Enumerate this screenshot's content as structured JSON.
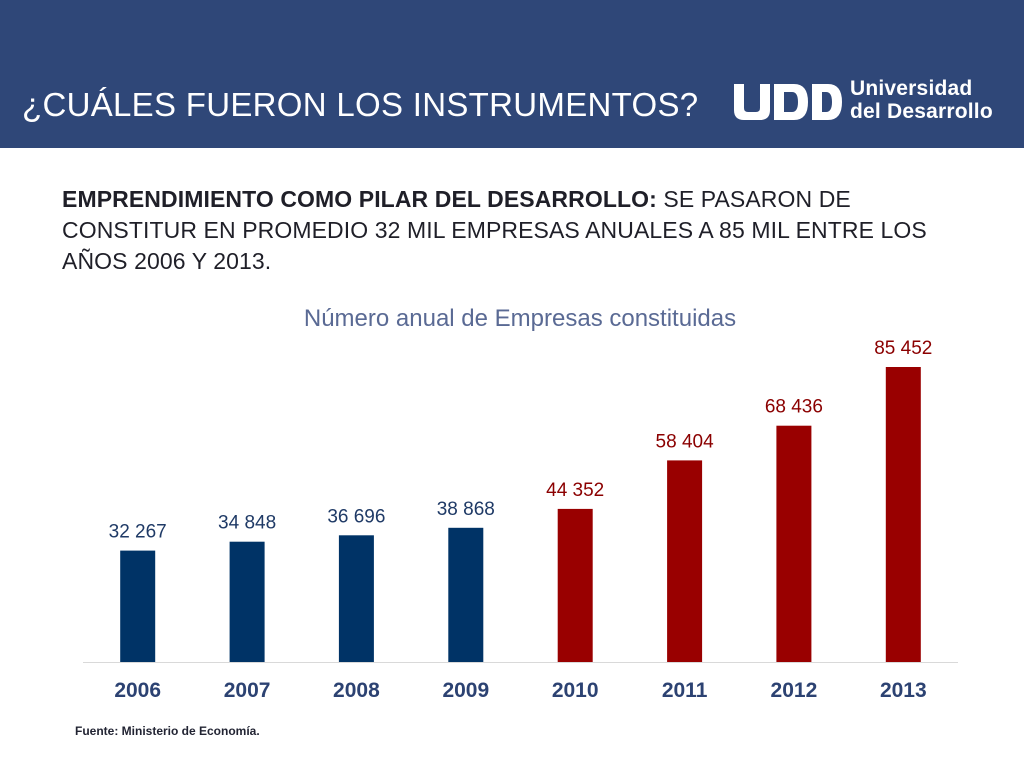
{
  "header": {
    "title": "¿CUÁLES FUERON LOS INSTRUMENTOS?",
    "logo": {
      "line1": "Universidad",
      "line2": "del Desarrollo",
      "mark": "UDD"
    },
    "background": "#2f4778"
  },
  "subtitle": {
    "bold": "EMPRENDIMIENTO COMO PILAR DEL DESARROLLO:",
    "text": " SE PASARON DE CONSTITUR EN PROMEDIO 32 MIL EMPRESAS ANUALES A 85 MIL ENTRE LOS AÑOS 2006 Y 2013."
  },
  "chart_data": {
    "type": "bar",
    "title": "Número anual de Empresas constituidas",
    "xlabel": "",
    "ylabel": "",
    "categories": [
      "2006",
      "2007",
      "2008",
      "2009",
      "2010",
      "2011",
      "2012",
      "2013"
    ],
    "values": [
      32267,
      34848,
      36696,
      38868,
      44352,
      58404,
      68436,
      85452
    ],
    "value_labels": [
      "32 267",
      "34 848",
      "36 696",
      "38 868",
      "44 352",
      "58 404",
      "68 436",
      "85 452"
    ],
    "bar_colors": [
      "#003366",
      "#003366",
      "#003366",
      "#003366",
      "#990000",
      "#990000",
      "#990000",
      "#990000"
    ],
    "ylim": [
      0,
      85452
    ],
    "grid": false,
    "legend": "none"
  },
  "source": "Fuente: Ministerio de Economía."
}
